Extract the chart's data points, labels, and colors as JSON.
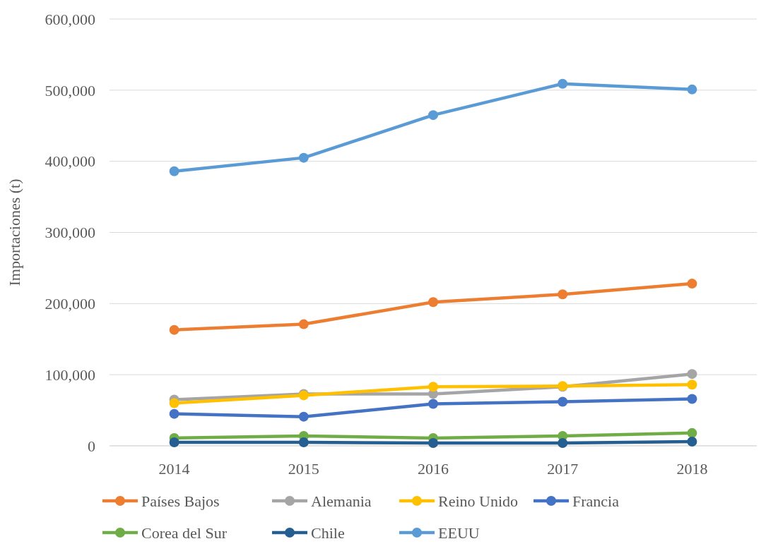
{
  "chart_data": {
    "type": "line",
    "ylabel": "Importaciones (t)",
    "categories": [
      "2014",
      "2015",
      "2016",
      "2017",
      "2018"
    ],
    "series": [
      {
        "name": "Países Bajos",
        "color": "#ed7d31",
        "values": [
          163000,
          171000,
          202000,
          213000,
          228000
        ]
      },
      {
        "name": "Alemania",
        "color": "#a5a5a5",
        "values": [
          65000,
          73000,
          73000,
          83000,
          101000
        ]
      },
      {
        "name": "Reino Unido",
        "color": "#ffc000",
        "values": [
          60000,
          71000,
          83000,
          84000,
          86000
        ]
      },
      {
        "name": "Francia",
        "color": "#4472c4",
        "values": [
          45000,
          41000,
          59000,
          62000,
          66000
        ]
      },
      {
        "name": "Corea del Sur",
        "color": "#70ad47",
        "values": [
          11000,
          14000,
          11000,
          14000,
          18000
        ]
      },
      {
        "name": "Chile",
        "color": "#255e91",
        "values": [
          5000,
          5000,
          4000,
          4000,
          6000
        ]
      },
      {
        "name": "EEUU",
        "color": "#5b9bd5",
        "values": [
          386000,
          405000,
          465000,
          509000,
          501000
        ]
      }
    ],
    "ylim": [
      0,
      600000
    ],
    "yticks": [
      {
        "value": 0,
        "label": "0"
      },
      {
        "value": 100000,
        "label": "100,000"
      },
      {
        "value": 200000,
        "label": "200,000"
      },
      {
        "value": 300000,
        "label": "300,000"
      },
      {
        "value": 400000,
        "label": "400,000"
      },
      {
        "value": 500000,
        "label": "500,000"
      },
      {
        "value": 600000,
        "label": "600,000"
      }
    ],
    "grid": "y",
    "legend": "bottom",
    "marker": "circle",
    "line_style": "solid"
  }
}
